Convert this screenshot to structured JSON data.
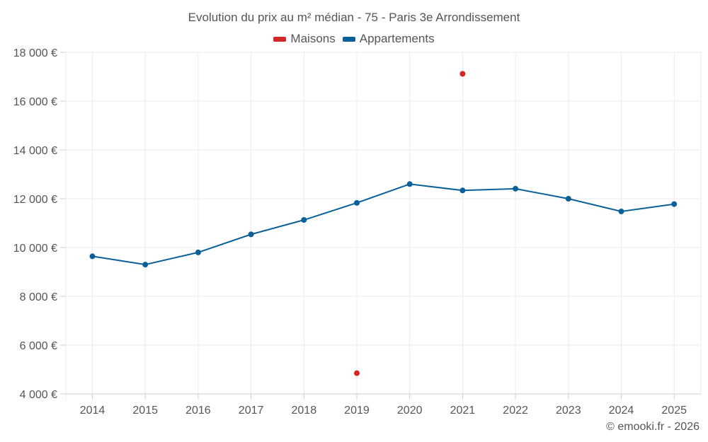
{
  "chart_data": {
    "type": "line",
    "title": "Evolution du prix au m² médian - 75 - Paris 3e Arrondissement",
    "categories": [
      "2014",
      "2015",
      "2016",
      "2017",
      "2018",
      "2019",
      "2020",
      "2021",
      "2022",
      "2023",
      "2024",
      "2025"
    ],
    "ylim": [
      4000,
      18000
    ],
    "yticks": [
      4000,
      6000,
      8000,
      10000,
      12000,
      14000,
      16000,
      18000
    ],
    "ytick_labels": [
      "4 000 €",
      "6 000 €",
      "8 000 €",
      "10 000 €",
      "12 000 €",
      "14 000 €",
      "16 000 €",
      "18 000 €"
    ],
    "xlabel": "",
    "ylabel": "",
    "grid": true,
    "legend_position": "top-center",
    "series": [
      {
        "name": "Maisons",
        "color": "#d62728",
        "values": [
          null,
          null,
          null,
          null,
          null,
          4850,
          null,
          17120,
          null,
          null,
          null,
          null
        ]
      },
      {
        "name": "Appartements",
        "color": "#0a6099",
        "values": [
          9640,
          9300,
          9800,
          10540,
          11130,
          11830,
          12600,
          12340,
          12410,
          12000,
          11480,
          11780
        ]
      }
    ]
  },
  "credit": "© emooki.fr - 2026"
}
